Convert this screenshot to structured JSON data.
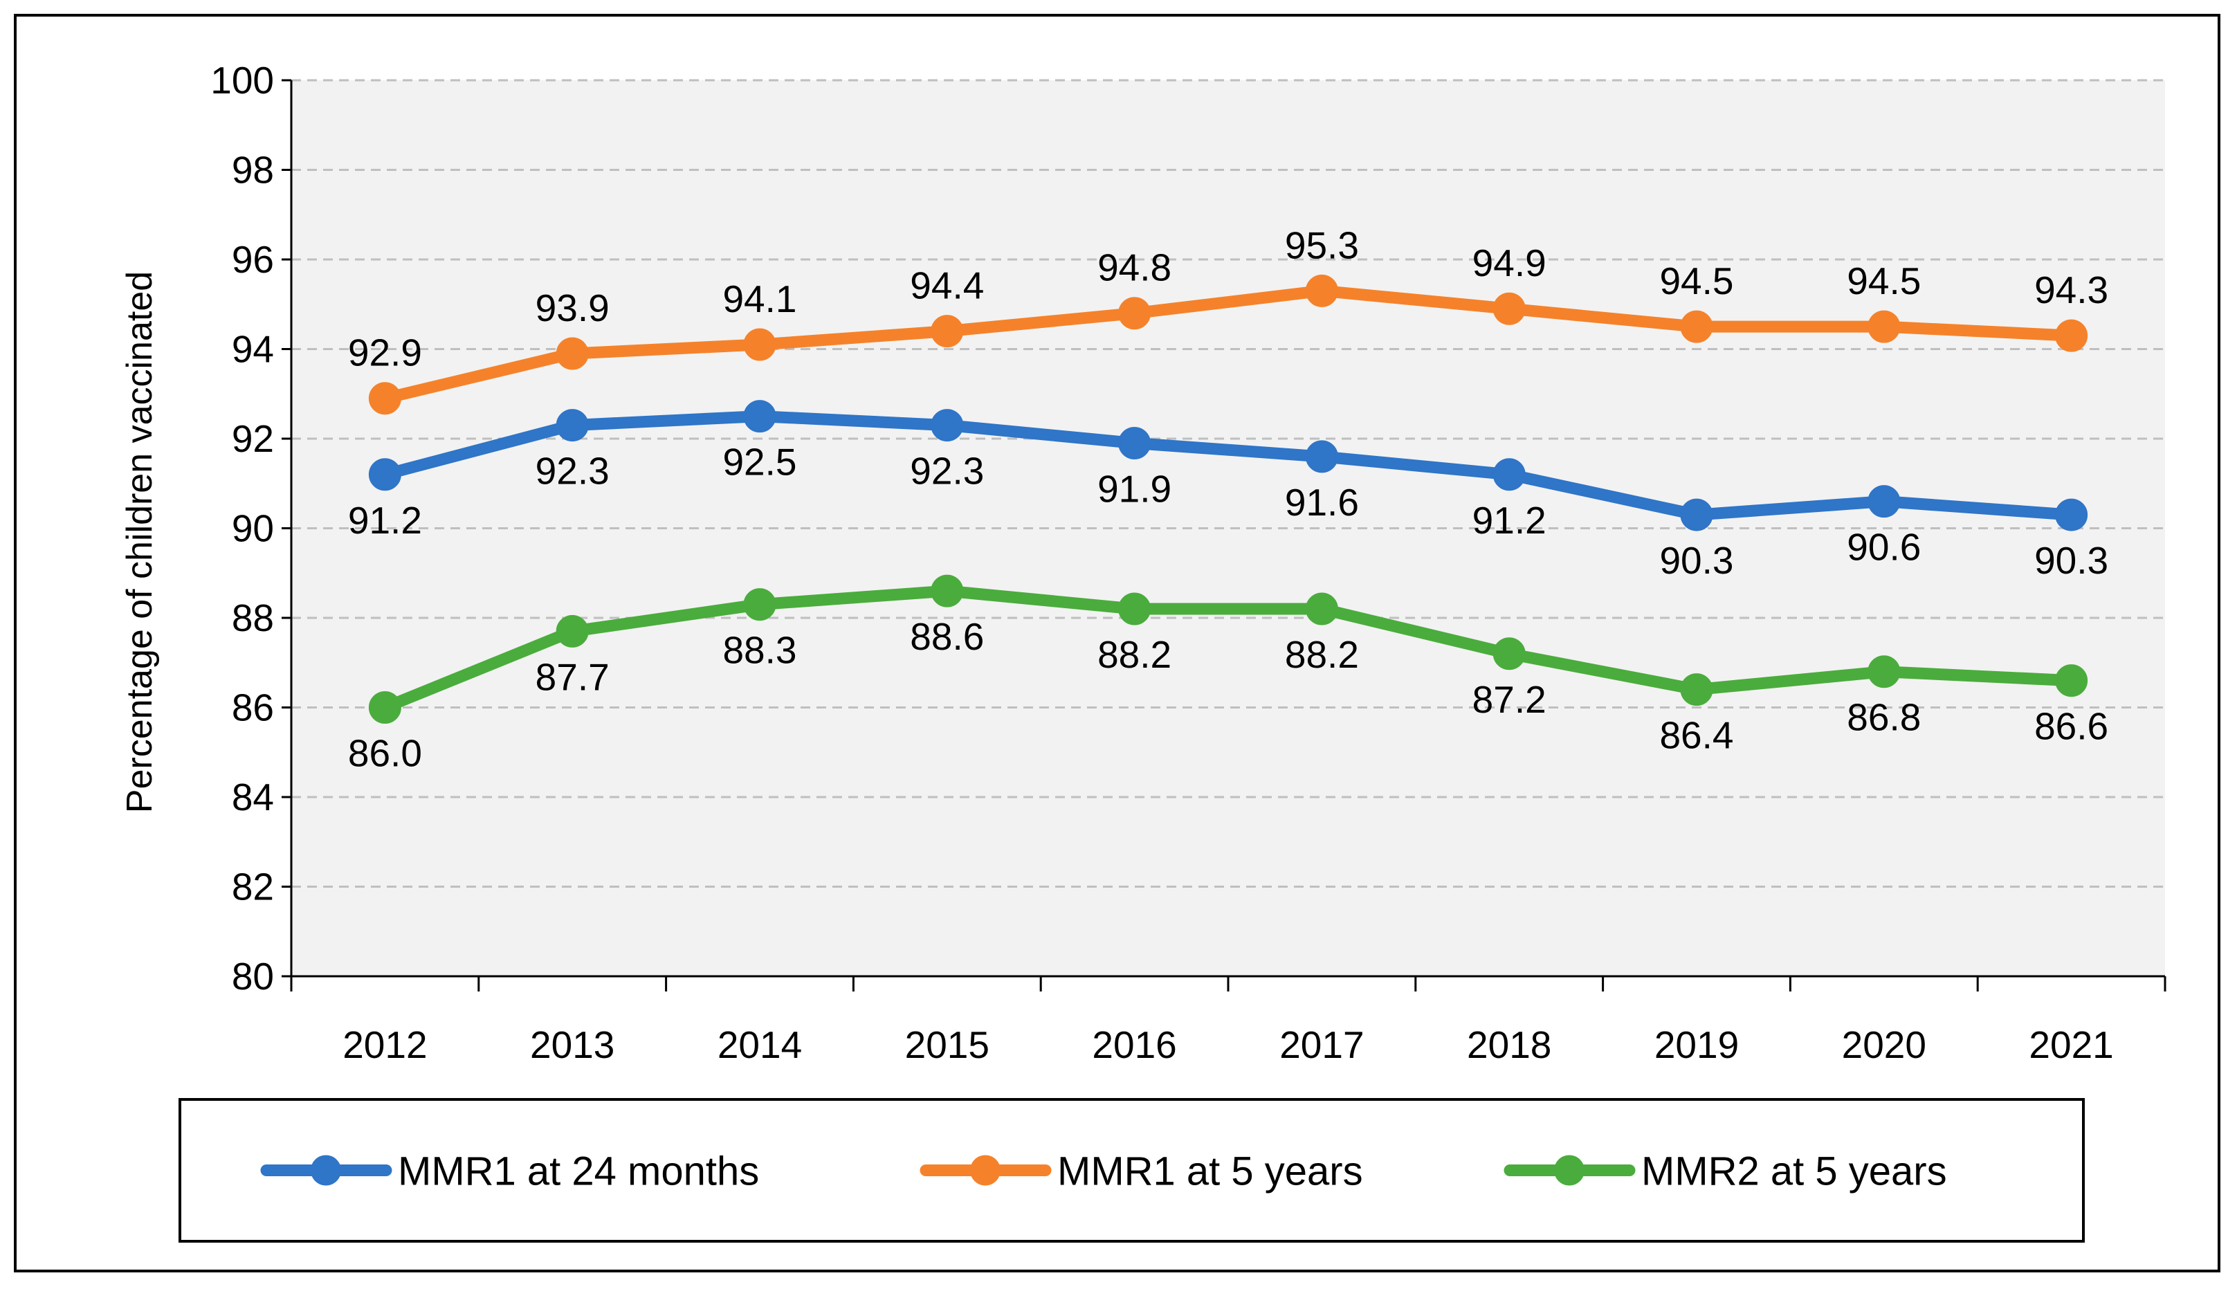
{
  "chart_data": {
    "type": "line",
    "title": "",
    "xlabel": "",
    "ylabel": "Percentage of children vaccinated",
    "ylim": [
      80,
      100
    ],
    "yticks": [
      "80",
      "82",
      "84",
      "86",
      "88",
      "90",
      "92",
      "94",
      "96",
      "98",
      "100"
    ],
    "categories": [
      "2012",
      "2013",
      "2014",
      "2015",
      "2016",
      "2017",
      "2018",
      "2019",
      "2020",
      "2021"
    ],
    "grid": "horizontal dashed",
    "legend_position": "bottom",
    "series": [
      {
        "name": "MMR1 at 24 months",
        "color": "#2f75c8",
        "values": [
          91.2,
          92.3,
          92.5,
          92.3,
          91.9,
          91.6,
          91.2,
          90.3,
          90.6,
          90.3
        ],
        "labels": [
          "91.2",
          "92.3",
          "92.5",
          "92.3",
          "91.9",
          "91.6",
          "91.2",
          "90.3",
          "90.6",
          "90.3"
        ],
        "label_position": "below"
      },
      {
        "name": "MMR1 at 5 years",
        "color": "#f5822a",
        "values": [
          92.9,
          93.9,
          94.1,
          94.4,
          94.8,
          95.3,
          94.9,
          94.5,
          94.5,
          94.3
        ],
        "labels": [
          "92.9",
          "93.9",
          "94.1",
          "94.4",
          "94.8",
          "95.3",
          "94.9",
          "94.5",
          "94.5",
          "94.3"
        ],
        "label_position": "above"
      },
      {
        "name": "MMR2 at 5 years",
        "color": "#4aac3c",
        "values": [
          86.0,
          87.7,
          88.3,
          88.6,
          88.2,
          88.2,
          87.2,
          86.4,
          86.8,
          86.6
        ],
        "labels": [
          "86.0",
          "87.7",
          "88.3",
          "88.6",
          "88.2",
          "88.2",
          "87.2",
          "86.4",
          "86.8",
          "86.6"
        ],
        "label_position": "below"
      }
    ]
  }
}
